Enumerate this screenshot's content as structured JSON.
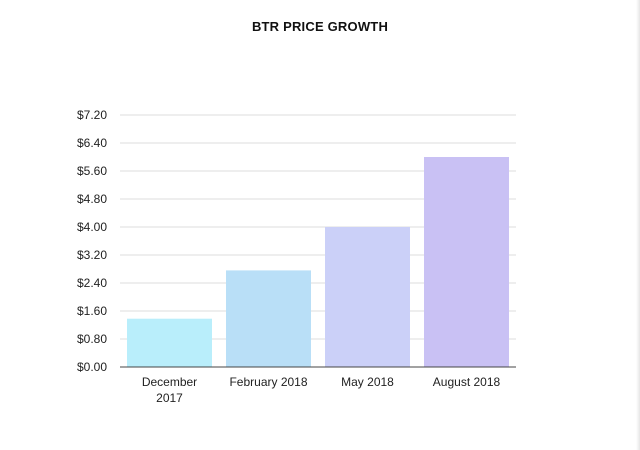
{
  "chart_data": {
    "type": "bar",
    "title": "BTR PRICE GROWTH",
    "xlabel": "",
    "ylabel": "",
    "categories": [
      "December 2017",
      "February 2018",
      "May 2018",
      "August 2018"
    ],
    "category_lines": [
      [
        "December",
        "2017"
      ],
      [
        "February 2018"
      ],
      [
        "May 2018"
      ],
      [
        "August 2018"
      ]
    ],
    "values": [
      1.38,
      2.76,
      4.0,
      6.0
    ],
    "ylim": [
      0,
      7.2
    ],
    "yticks": [
      "$0.00",
      "$0.80",
      "$1.60",
      "$2.40",
      "$3.20",
      "$4.00",
      "$4.80",
      "$5.60",
      "$6.40",
      "$7.20"
    ],
    "ytick_values": [
      0,
      0.8,
      1.6,
      2.4,
      3.2,
      4.0,
      4.8,
      5.6,
      6.4,
      7.2
    ],
    "grid": true,
    "legend": "none",
    "bar_colors": [
      "#b9eefb",
      "#b9dff7",
      "#cbd0f8",
      "#c9c1f4"
    ],
    "grid_color": "#dddddd",
    "axis_color": "#444444"
  }
}
